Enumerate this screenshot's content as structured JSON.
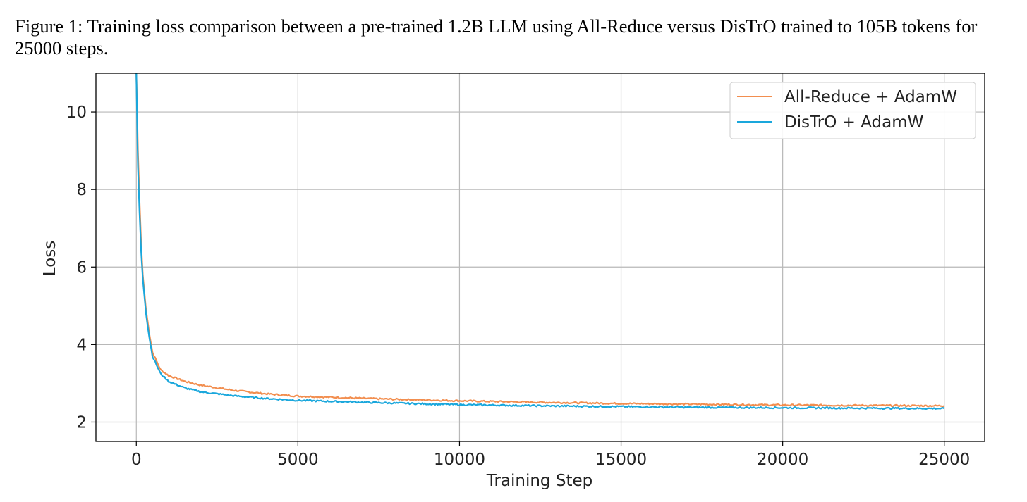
{
  "figure": {
    "caption": "Figure 1: Training loss comparison between a pre-trained 1.2B LLM using All-Reduce versus DisTrO trained to 105B tokens for 25000 steps."
  },
  "colors": {
    "all_reduce": "#f28e4f",
    "distro": "#1aa7dc",
    "grid": "#b8b8b8",
    "axes": "#000000"
  },
  "chart_data": {
    "type": "line",
    "title": "",
    "xlabel": "Training Step",
    "ylabel": "Loss",
    "xlim": [
      -1250,
      26250
    ],
    "ylim": [
      1.5,
      11.0
    ],
    "xticks": [
      0,
      5000,
      10000,
      15000,
      20000,
      25000
    ],
    "yticks": [
      2,
      4,
      6,
      8,
      10
    ],
    "xtick_labels": [
      "0",
      "5000",
      "10000",
      "15000",
      "20000",
      "25000"
    ],
    "ytick_labels": [
      "2",
      "4",
      "6",
      "8",
      "10"
    ],
    "grid": true,
    "legend_position": "top-right",
    "series": [
      {
        "name": "All-Reduce + AdamW",
        "color": "#f28e4f",
        "x": [
          0,
          50,
          100,
          150,
          200,
          300,
          400,
          500,
          750,
          1000,
          1500,
          2000,
          3000,
          4000,
          5000,
          7500,
          10000,
          12500,
          15000,
          17500,
          20000,
          22500,
          25000
        ],
        "y": [
          11.0,
          9.0,
          7.7,
          6.6,
          5.8,
          4.9,
          4.3,
          3.8,
          3.35,
          3.2,
          3.05,
          2.95,
          2.82,
          2.73,
          2.67,
          2.6,
          2.55,
          2.51,
          2.48,
          2.46,
          2.44,
          2.43,
          2.42
        ]
      },
      {
        "name": "DisTrO + AdamW",
        "color": "#1aa7dc",
        "x": [
          0,
          50,
          100,
          150,
          200,
          300,
          400,
          500,
          750,
          1000,
          1500,
          2000,
          3000,
          4000,
          5000,
          7500,
          10000,
          12500,
          15000,
          17500,
          20000,
          22500,
          25000
        ],
        "y": [
          11.0,
          8.6,
          7.4,
          6.4,
          5.7,
          4.8,
          4.2,
          3.7,
          3.25,
          3.05,
          2.88,
          2.78,
          2.68,
          2.61,
          2.56,
          2.5,
          2.45,
          2.42,
          2.4,
          2.38,
          2.37,
          2.36,
          2.35
        ]
      }
    ]
  }
}
